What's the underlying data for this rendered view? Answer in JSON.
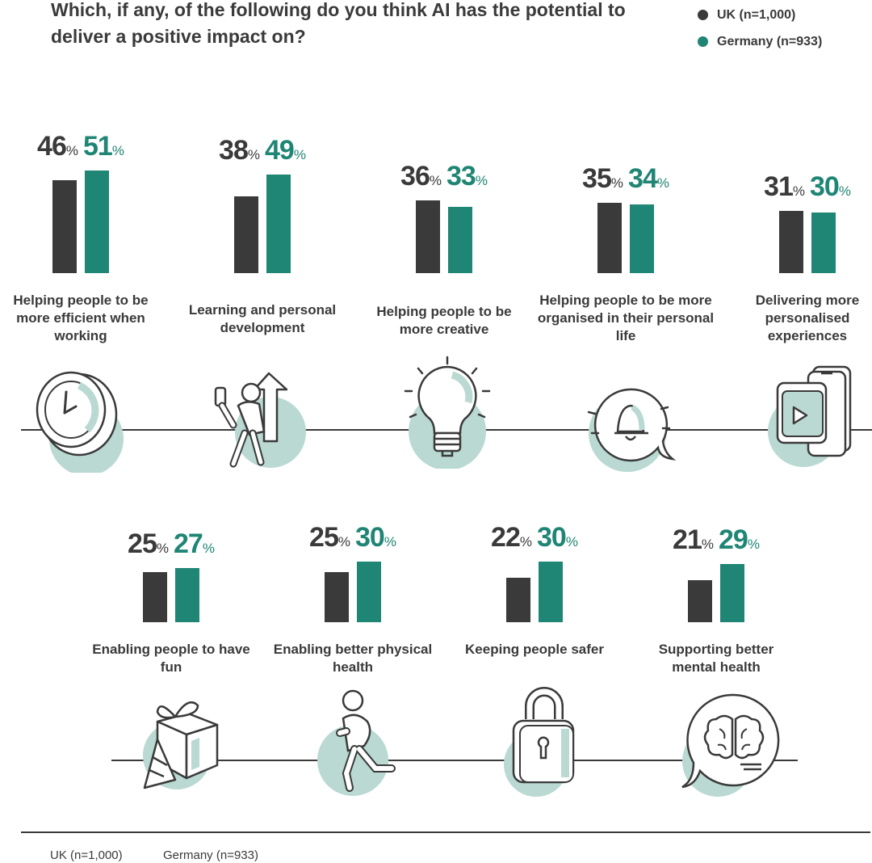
{
  "title": "Which, if any, of the following do you think AI has the potential to deliver a positive impact on?",
  "legend": [
    {
      "label": "UK (n=1,000)",
      "color": "#3a3a3a"
    },
    {
      "label": "Germany (n=933)",
      "color": "#1f8574"
    }
  ],
  "footer": {
    "uk": "UK (n=1,000)",
    "germany": "Germany (n=933)"
  },
  "colors": {
    "uk": "#3a3a3a",
    "germany": "#1f8574",
    "icon_circle": "#b9d9d2"
  },
  "chart_data": {
    "type": "bar",
    "categories": [
      "Helping people to be more efficient when working",
      "Learning and personal development",
      "Helping people to be more creative",
      "Helping people to be more organised in their personal life",
      "Delivering more personalised experiences",
      "Enabling people to have fun",
      "Enabling better physical health",
      "Keeping people safer",
      "Supporting better mental health"
    ],
    "series": [
      {
        "name": "UK (n=1,000)",
        "values": [
          46,
          38,
          36,
          35,
          31,
          25,
          25,
          22,
          21
        ]
      },
      {
        "name": "Germany (n=933)",
        "values": [
          51,
          49,
          33,
          34,
          30,
          27,
          30,
          30,
          29
        ]
      }
    ],
    "unit": "%",
    "icons": [
      "clock-icon",
      "person-arrow-icon",
      "lightbulb-icon",
      "bell-chat-icon",
      "play-screen-icon",
      "gift-party-icon",
      "runner-icon",
      "padlock-icon",
      "brain-chat-icon"
    ],
    "ylim": [
      0,
      100
    ],
    "legend_position": "top-right"
  }
}
